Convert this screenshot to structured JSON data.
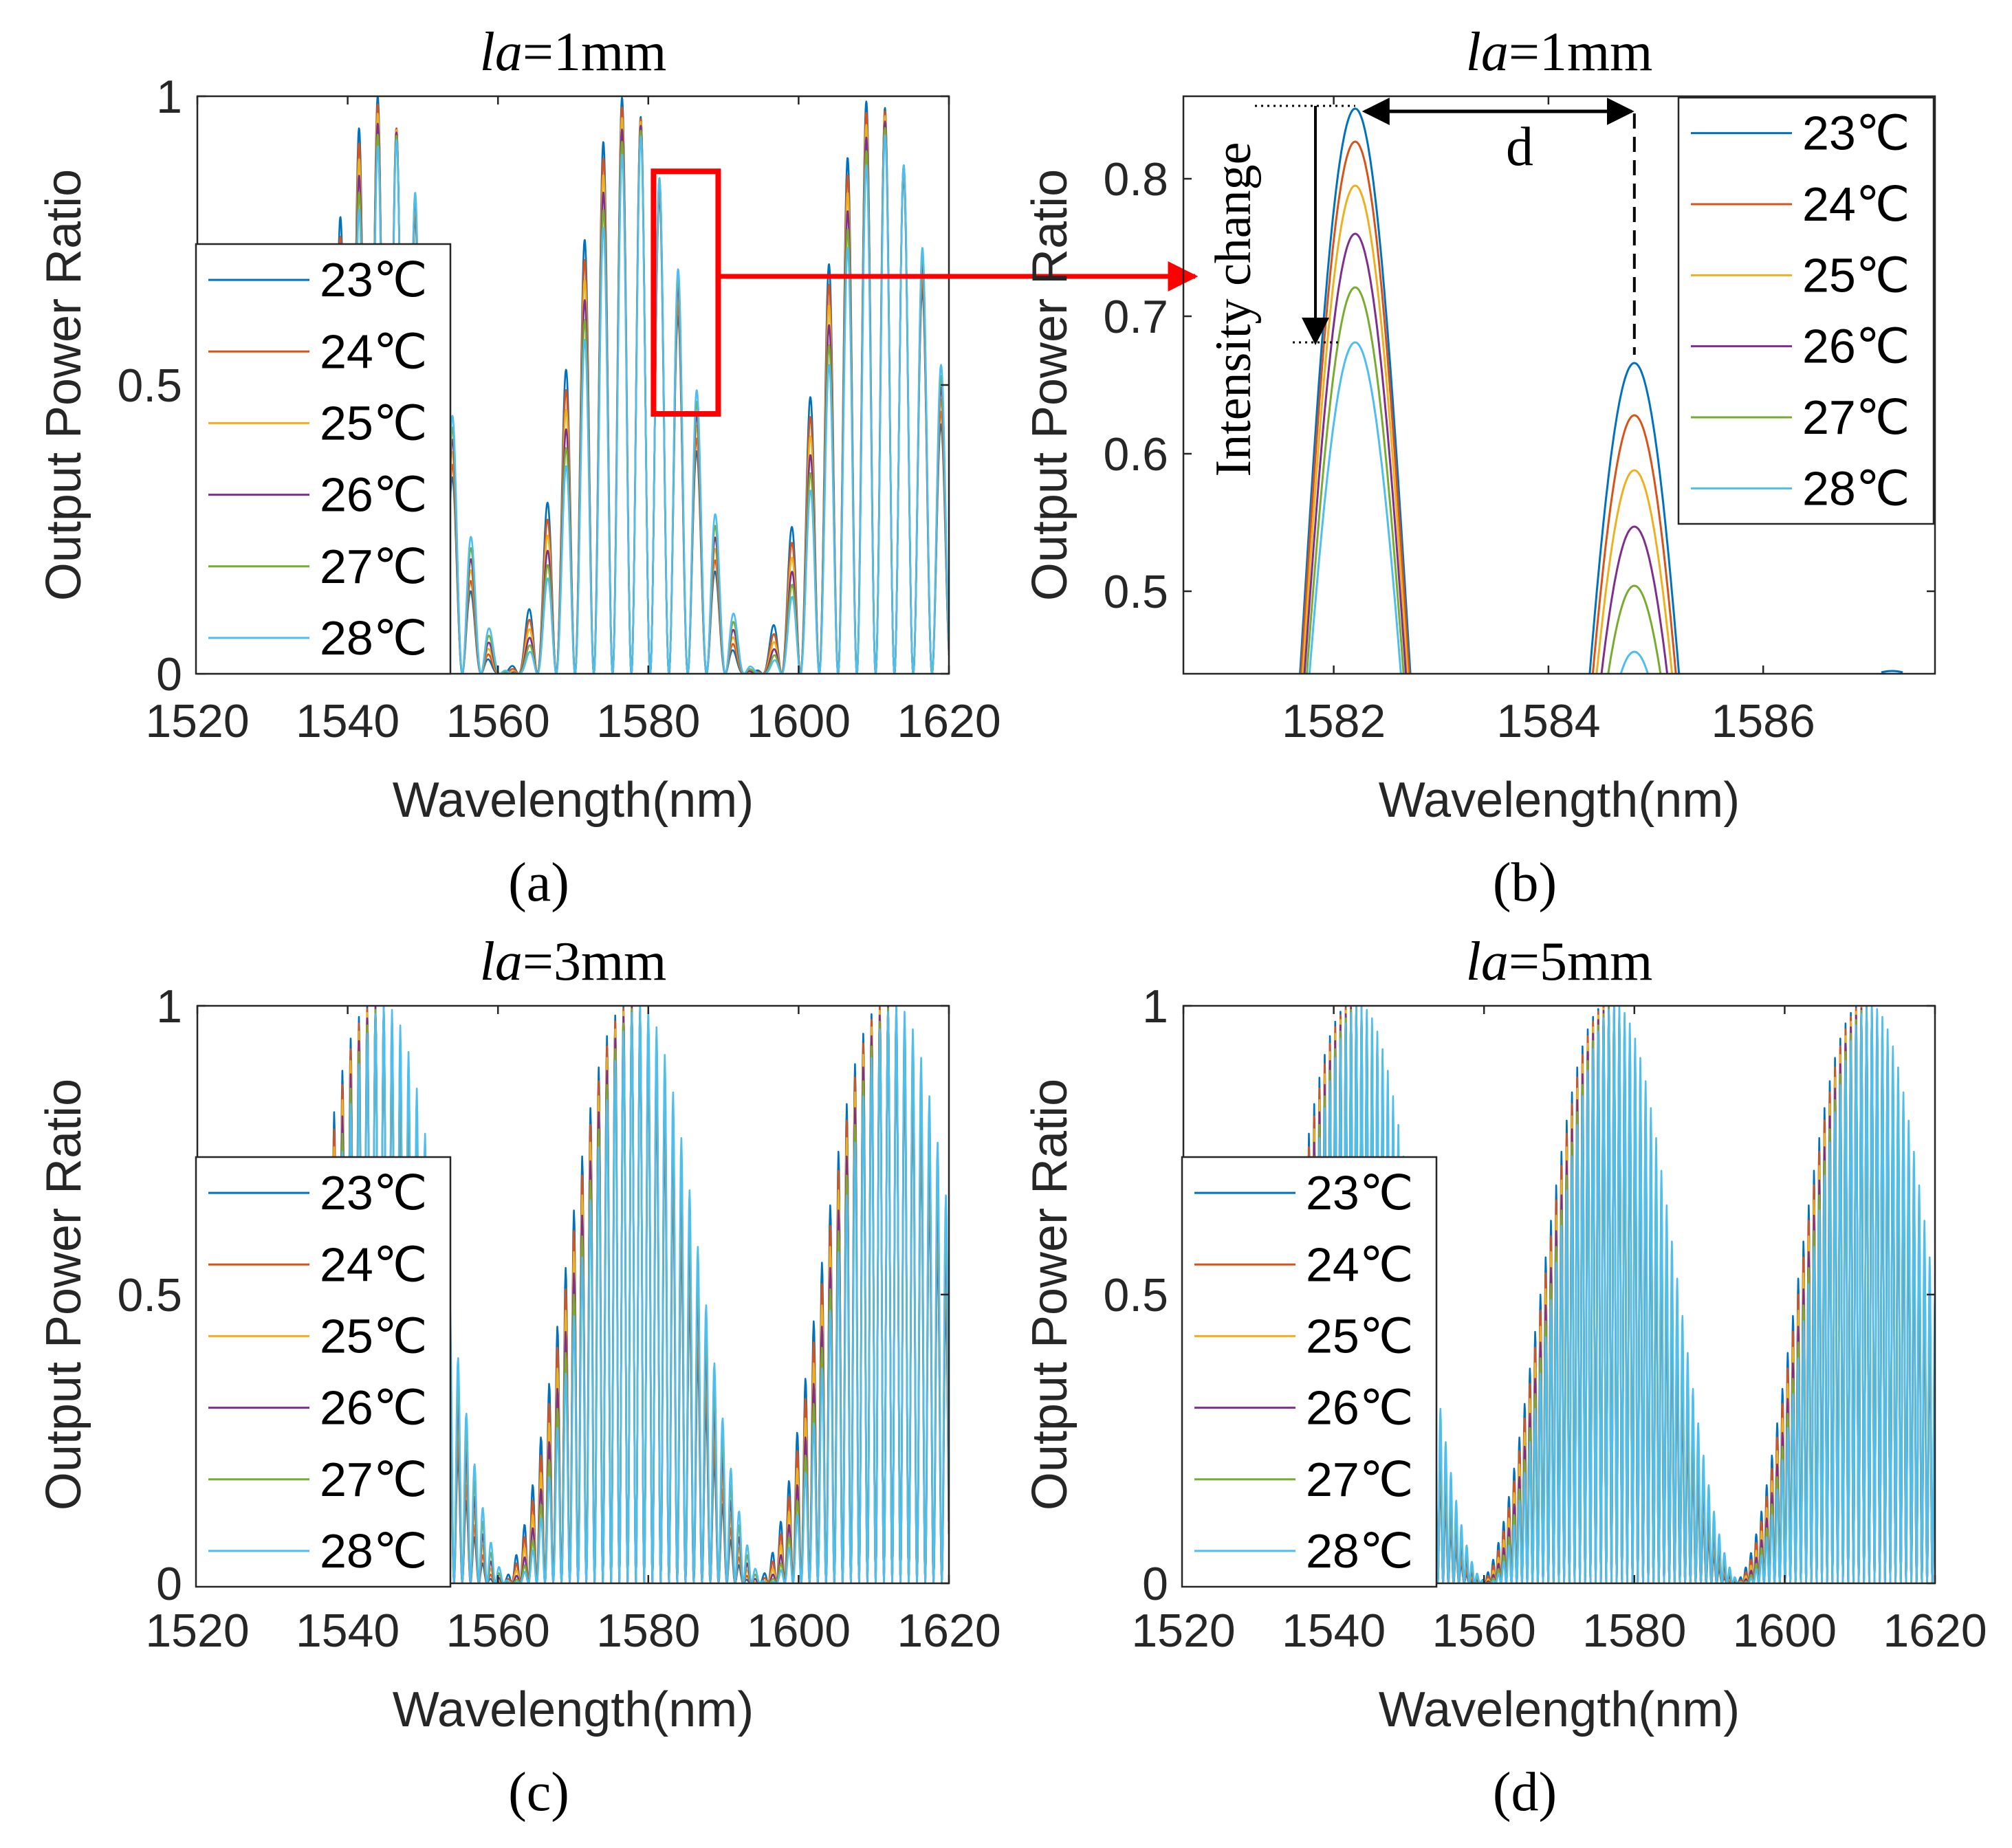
{
  "figure": {
    "series_colors": [
      "#0072BD",
      "#D95319",
      "#EDB120",
      "#7E2F8E",
      "#77AC30",
      "#4DBEEE"
    ],
    "annotation_color": "#ff0000"
  },
  "chart_data": [
    {
      "id": "a",
      "type": "line",
      "title_italic": "la",
      "title_rest": "=1mm",
      "panel_label": "(a)",
      "xlabel": "Wavelength(nm)",
      "ylabel": "Output Power Ratio",
      "xlim": [
        1520,
        1620
      ],
      "ylim": [
        0,
        1
      ],
      "xticks": [
        "1520",
        "1540",
        "1560",
        "1580",
        "1600",
        "1620"
      ],
      "yticks": [
        "0",
        "0.5",
        "1"
      ],
      "legend_position": "left",
      "legend": [
        "23℃",
        "24℃",
        "25℃",
        "26℃",
        "27℃",
        "28℃"
      ],
      "x_start": 1530,
      "x_end": 1620,
      "fringe_period_nm": 2.5,
      "series": [
        {
          "name": "23℃",
          "envelope_shift_nm": 0.0,
          "peak_scale": 1.0
        },
        {
          "name": "24℃",
          "envelope_shift_nm": 0.3,
          "peak_scale": 0.97
        },
        {
          "name": "25℃",
          "envelope_shift_nm": 0.6,
          "peak_scale": 0.94
        },
        {
          "name": "26℃",
          "envelope_shift_nm": 0.9,
          "peak_scale": 0.91
        },
        {
          "name": "27℃",
          "envelope_shift_nm": 1.2,
          "peak_scale": 0.88
        },
        {
          "name": "28℃",
          "envelope_shift_nm": 1.5,
          "peak_scale": 0.85
        }
      ],
      "annotation": {
        "type": "zoom-box",
        "x": [
          1580.7,
          1589.3
        ],
        "y": [
          0.45,
          0.87
        ]
      }
    },
    {
      "id": "b",
      "type": "line",
      "title_italic": "la",
      "title_rest": "=1mm",
      "panel_label": "(b)",
      "xlabel": "Wavelength(nm)",
      "ylabel": "Output Power Ratio",
      "xlim": [
        1580.6,
        1587.6
      ],
      "ylim": [
        0.44,
        0.86
      ],
      "xticks": [
        "1582",
        "1584",
        "1586"
      ],
      "yticks": [
        "0.5",
        "0.6",
        "0.7",
        "0.8"
      ],
      "legend_position": "top-right",
      "legend": [
        "23℃",
        "24℃",
        "25℃",
        "26℃",
        "27℃",
        "28℃"
      ],
      "peak1_x": 1582.2,
      "peak2_x": 1584.8,
      "half_width_nm": 1.05,
      "series": [
        {
          "name": "23℃",
          "peak1": 0.851,
          "peak2": 0.666
        },
        {
          "name": "24℃",
          "peak1": 0.827,
          "peak2": 0.628
        },
        {
          "name": "25℃",
          "peak1": 0.795,
          "peak2": 0.588
        },
        {
          "name": "26℃",
          "peak1": 0.76,
          "peak2": 0.547
        },
        {
          "name": "27℃",
          "peak1": 0.721,
          "peak2": 0.504
        },
        {
          "name": "28℃",
          "peak1": 0.681,
          "peak2": 0.456
        }
      ],
      "annotations": {
        "intensity_label": "Intensity change",
        "d_label": "d"
      }
    },
    {
      "id": "c",
      "type": "line",
      "title_italic": "la",
      "title_rest": "=3mm",
      "panel_label": "(c)",
      "xlabel": "Wavelength(nm)",
      "ylabel": "Output Power Ratio",
      "xlim": [
        1520,
        1620
      ],
      "ylim": [
        0,
        1
      ],
      "xticks": [
        "1520",
        "1540",
        "1560",
        "1580",
        "1600",
        "1620"
      ],
      "yticks": [
        "0",
        "0.5",
        "1"
      ],
      "legend_position": "left",
      "legend": [
        "23℃",
        "24℃",
        "25℃",
        "26℃",
        "27℃",
        "28℃"
      ],
      "x_start": 1536,
      "x_end": 1620,
      "fringe_period_nm": 1.1,
      "envelope_period_nm": 34,
      "envelope_peak_nm": 1543,
      "series": [
        {
          "name": "23℃",
          "envelope_shift_nm": 0.0
        },
        {
          "name": "24℃",
          "envelope_shift_nm": 0.4
        },
        {
          "name": "25℃",
          "envelope_shift_nm": 0.8
        },
        {
          "name": "26℃",
          "envelope_shift_nm": 1.2
        },
        {
          "name": "27℃",
          "envelope_shift_nm": 1.6
        },
        {
          "name": "28℃",
          "envelope_shift_nm": 2.0
        }
      ]
    },
    {
      "id": "d",
      "type": "line",
      "title_italic": "la",
      "title_rest": "=5mm",
      "panel_label": "(d)",
      "xlabel": "Wavelength(nm)",
      "ylabel": "Output Power Ratio",
      "xlim": [
        1520,
        1620
      ],
      "ylim": [
        0,
        1
      ],
      "xticks": [
        "1520",
        "1540",
        "1560",
        "1580",
        "1600",
        "1620"
      ],
      "yticks": [
        "0",
        "0.5",
        "1"
      ],
      "legend_position": "left",
      "legend": [
        "23℃",
        "24℃",
        "25℃",
        "26℃",
        "27℃",
        "28℃"
      ],
      "x_start": 1536,
      "x_end": 1620,
      "fringe_period_nm": 0.7,
      "envelope_period_nm": 34,
      "envelope_peak_nm": 1542,
      "series": [
        {
          "name": "23℃",
          "envelope_shift_nm": 0.0
        },
        {
          "name": "24℃",
          "envelope_shift_nm": 0.3
        },
        {
          "name": "25℃",
          "envelope_shift_nm": 0.6
        },
        {
          "name": "26℃",
          "envelope_shift_nm": 0.9
        },
        {
          "name": "27℃",
          "envelope_shift_nm": 1.2
        },
        {
          "name": "28℃",
          "envelope_shift_nm": 1.5
        }
      ]
    }
  ]
}
